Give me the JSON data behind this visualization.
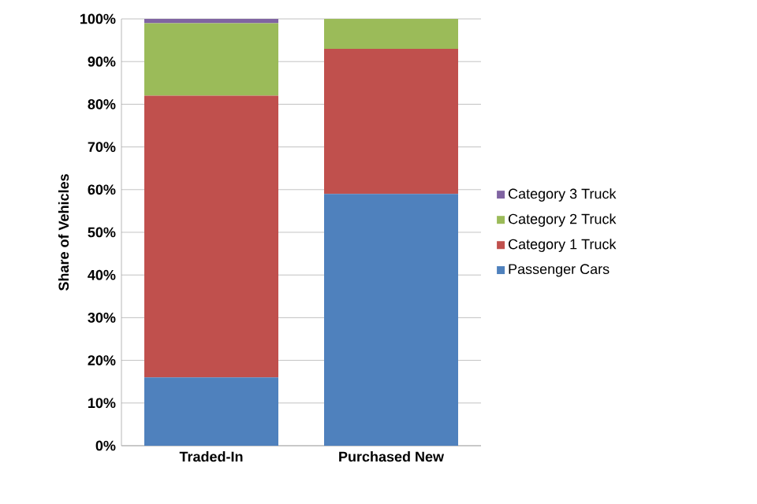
{
  "chart_data": {
    "type": "bar",
    "stacked": true,
    "ylabel": "Share of Vehicles",
    "categories": [
      "Traded-In",
      "Purchased New"
    ],
    "series": [
      {
        "name": "Passenger Cars",
        "color": "#4f81bd",
        "values": [
          16,
          59
        ]
      },
      {
        "name": "Category 1 Truck",
        "color": "#c0504d",
        "values": [
          66,
          34
        ]
      },
      {
        "name": "Category 2 Truck",
        "color": "#9bbb59",
        "values": [
          17,
          7
        ]
      },
      {
        "name": "Category 3 Truck",
        "color": "#8064a2",
        "values": [
          1,
          0
        ]
      }
    ],
    "ylim": [
      0,
      100
    ],
    "yticks": [
      {
        "value": 0,
        "label": "0%"
      },
      {
        "value": 10,
        "label": "10%"
      },
      {
        "value": 20,
        "label": "20%"
      },
      {
        "value": 30,
        "label": "30%"
      },
      {
        "value": 40,
        "label": "40%"
      },
      {
        "value": 50,
        "label": "50%"
      },
      {
        "value": 60,
        "label": "60%"
      },
      {
        "value": 70,
        "label": "70%"
      },
      {
        "value": 80,
        "label": "80%"
      },
      {
        "value": 90,
        "label": "90%"
      },
      {
        "value": 100,
        "label": "100%"
      }
    ],
    "grid": "y",
    "legend": "right"
  }
}
